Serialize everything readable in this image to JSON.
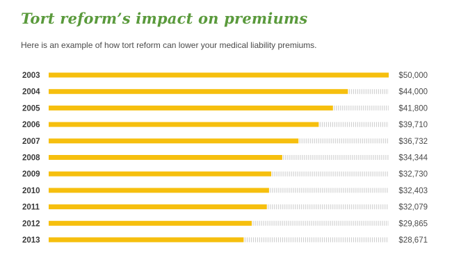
{
  "title": "Tort reform’s impact on premiums",
  "subtitle": "Here is an example of how tort reform can lower your medical liability premiums.",
  "colors": {
    "bar": "#f6bf0e",
    "track": "#c9c9c9",
    "title": "#5a9a3c"
  },
  "chart_data": {
    "type": "bar",
    "orientation": "horizontal",
    "title": "Tort reform’s impact on premiums",
    "subtitle": "Here is an example of how tort reform can lower your medical liability premiums.",
    "categories": [
      "2003",
      "2004",
      "2005",
      "2006",
      "2007",
      "2008",
      "2009",
      "2010",
      "2011",
      "2012",
      "2013"
    ],
    "values": [
      50000,
      44000,
      41800,
      39710,
      36732,
      34344,
      32730,
      32403,
      32079,
      29865,
      28671
    ],
    "value_labels": [
      "$50,000",
      "$44,000",
      "$41,800",
      "$39,710",
      "$36,732",
      "$34,344",
      "$32,730",
      "$32,403",
      "$32,079",
      "$29,865",
      "$28,671"
    ],
    "xlim": [
      0,
      50000
    ],
    "xlabel": "",
    "ylabel": "",
    "grid": false,
    "legend": "none"
  }
}
